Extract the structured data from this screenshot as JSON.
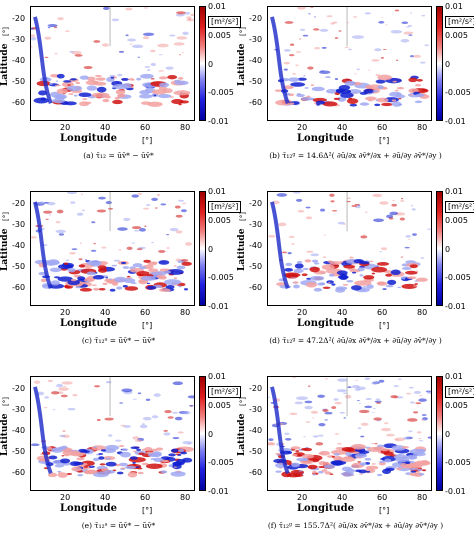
{
  "common": {
    "latitude_label": "Latitude",
    "longitude_label": "Longitude",
    "degree_unit": "[°]",
    "colorbar_unit": "[m²/s²]",
    "colorbar_ticks": [
      "0.01",
      "0.005",
      "0",
      "-0.005",
      "-0.01"
    ],
    "y_ticks": [
      "-20",
      "-30",
      "-40",
      "-50",
      "-60"
    ],
    "x_ticks": [
      "20",
      "40",
      "60",
      "80"
    ]
  },
  "panels": [
    {
      "id": "a",
      "caption": "(a)  τ̄₁₂ = ūv̄* − ūv̄*"
    },
    {
      "id": "b",
      "caption": "(b)  τ̄₁₂ᵍ = 14.6Δ²( ∂ū/∂x ∂v̄*/∂x + ∂ū/∂y ∂v̄*/∂y )"
    },
    {
      "id": "c",
      "caption": "(c)  τ̄₁₂ᵃ = ũv̄* − ũv̄*"
    },
    {
      "id": "d",
      "caption": "(d)  τ̄₁₂ᵍ = 47.2Δ²( ∂ū/∂x ∂v̄*/∂x + ∂ū/∂y ∂v̄*/∂y )"
    },
    {
      "id": "e",
      "caption": "(e)  τ̄₁₂ᵃ = ũv̄* − ũv̄*"
    },
    {
      "id": "f",
      "caption": "(f)  τ̄₁₂ᵍ = 155.7Δ²( ∂ū/∂x ∂v̄*/∂x + ∂ū/∂y ∂v̄*/∂y )"
    }
  ]
}
